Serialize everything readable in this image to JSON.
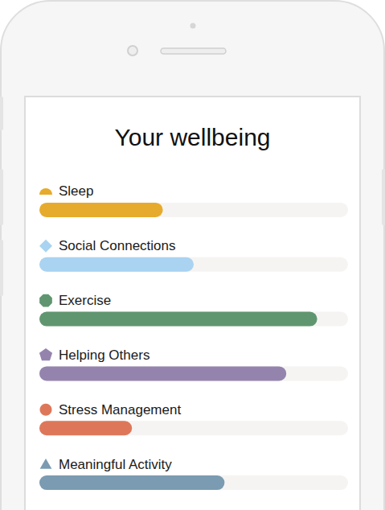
{
  "chart_data": {
    "type": "bar",
    "orientation": "horizontal",
    "title": "Your wellbeing",
    "categories": [
      "Sleep",
      "Social Connections",
      "Exercise",
      "Helping Others",
      "Stress Management",
      "Meaningful Activity"
    ],
    "values": [
      40,
      50,
      90,
      80,
      30,
      60
    ],
    "colors": [
      "#e6ab2c",
      "#a9d3f1",
      "#5f9670",
      "#9484ad",
      "#de7759",
      "#7a9bb1"
    ],
    "xlim": [
      0,
      100
    ],
    "tick_labels": false,
    "grid": false
  }
}
